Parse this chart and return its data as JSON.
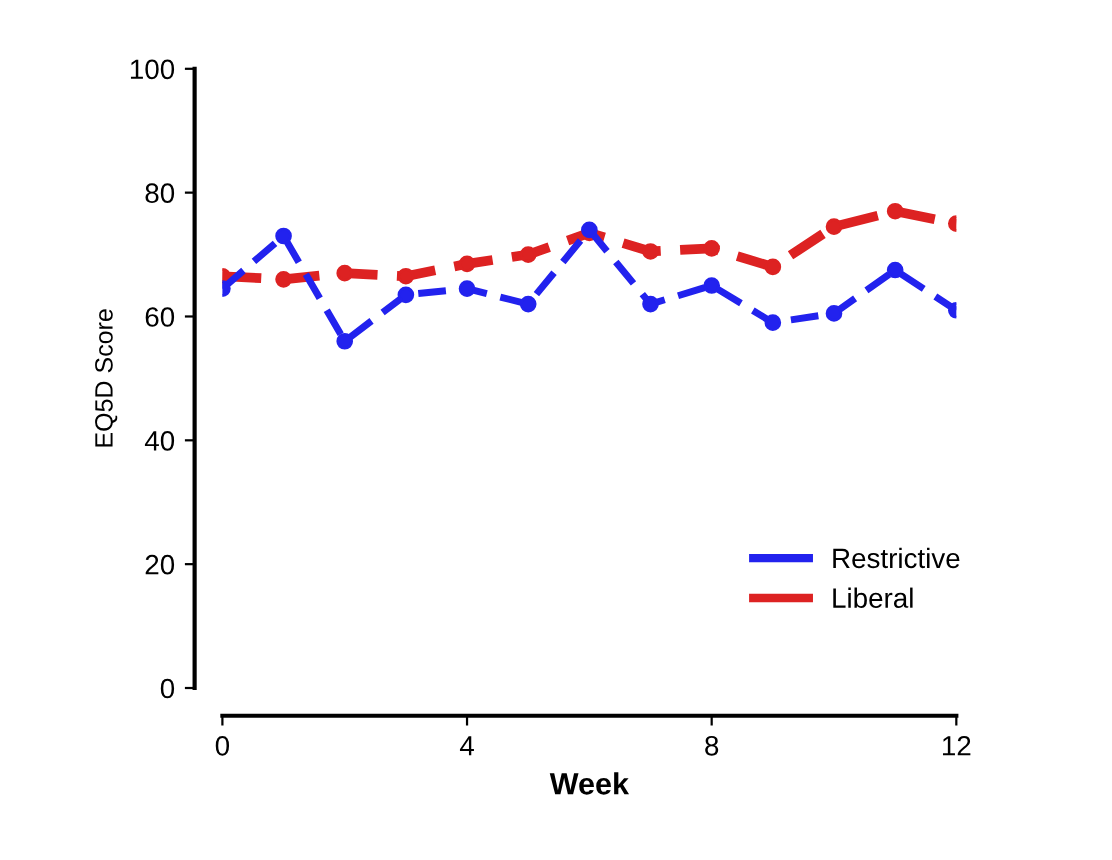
{
  "chart_data": {
    "type": "line",
    "xlabel": "Week",
    "ylabel": "EQ5D Score",
    "x": [
      0,
      1,
      2,
      3,
      4,
      5,
      6,
      7,
      8,
      9,
      10,
      11,
      12
    ],
    "series": [
      {
        "name": "Restrictive",
        "color": "#2222ee",
        "values": [
          64.5,
          73,
          56,
          63.5,
          64.5,
          62,
          74,
          62,
          65,
          59,
          60.5,
          67.5,
          61
        ]
      },
      {
        "name": "Liberal",
        "color": "#dd2222",
        "values": [
          66.5,
          66,
          67,
          66.5,
          68.5,
          70,
          73.5,
          70.5,
          71,
          68,
          74.5,
          77,
          75
        ]
      }
    ],
    "xlim": [
      0,
      12
    ],
    "xticks": [
      0,
      4,
      8,
      12
    ],
    "ylim": [
      0,
      100
    ],
    "yticks": [
      0,
      20,
      40,
      60,
      80,
      100
    ],
    "marker": "circle",
    "line_style": "dashed",
    "grid": false,
    "legend": "bottom right"
  }
}
